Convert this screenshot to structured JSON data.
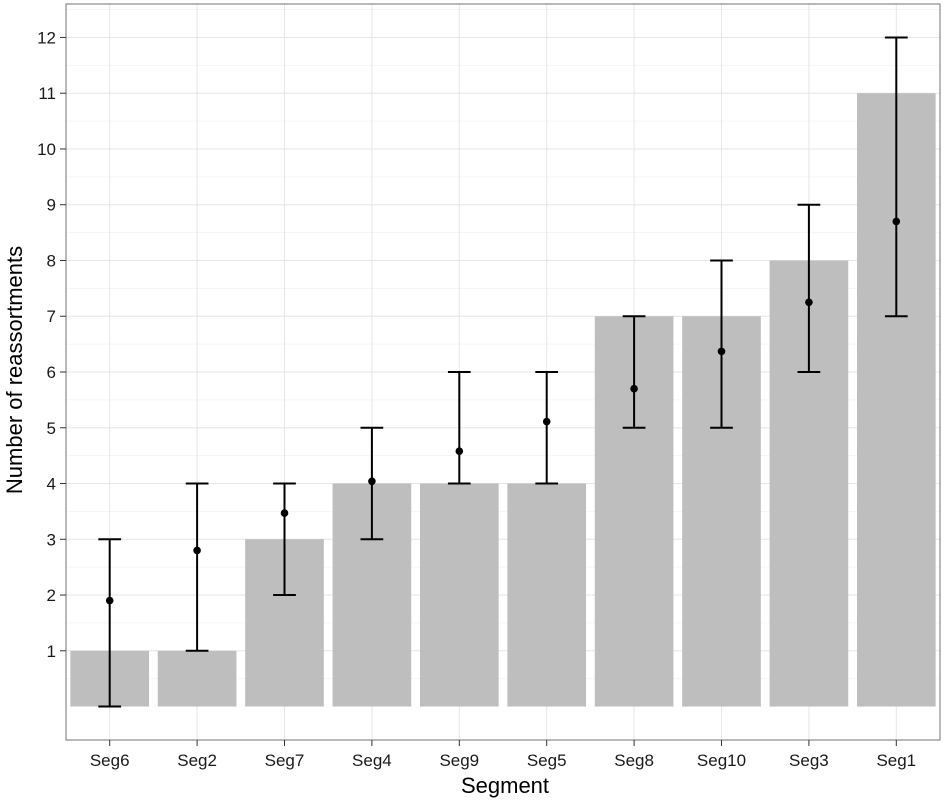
{
  "chart_data": {
    "type": "bar",
    "title": "",
    "xlabel": "Segment",
    "ylabel": "Number of reassortments",
    "categories": [
      "Seg6",
      "Seg2",
      "Seg7",
      "Seg4",
      "Seg9",
      "Seg5",
      "Seg8",
      "Seg10",
      "Seg3",
      "Seg1"
    ],
    "values": [
      1,
      1,
      3,
      4,
      4,
      4,
      7,
      7,
      8,
      11
    ],
    "points": [
      1.9,
      2.8,
      3.47,
      4.04,
      4.58,
      5.11,
      5.7,
      6.37,
      7.25,
      8.7
    ],
    "error_low": [
      0,
      1,
      2,
      3,
      4,
      4,
      5,
      5,
      6,
      7
    ],
    "error_high": [
      3,
      4,
      4,
      5,
      6,
      6,
      7,
      8,
      9,
      12
    ],
    "yticks": [
      1,
      2,
      3,
      4,
      5,
      6,
      7,
      8,
      9,
      10,
      11,
      12
    ],
    "ylim": [
      -0.6,
      12.6
    ],
    "grid": true,
    "colors": {
      "bar": "#bebebe",
      "panel_background": "#ffffff",
      "grid_major": "#e6e6e6",
      "grid_minor": "#f3f3f3",
      "border": "#888888",
      "errorbar": "#000000",
      "point": "#000000"
    }
  }
}
